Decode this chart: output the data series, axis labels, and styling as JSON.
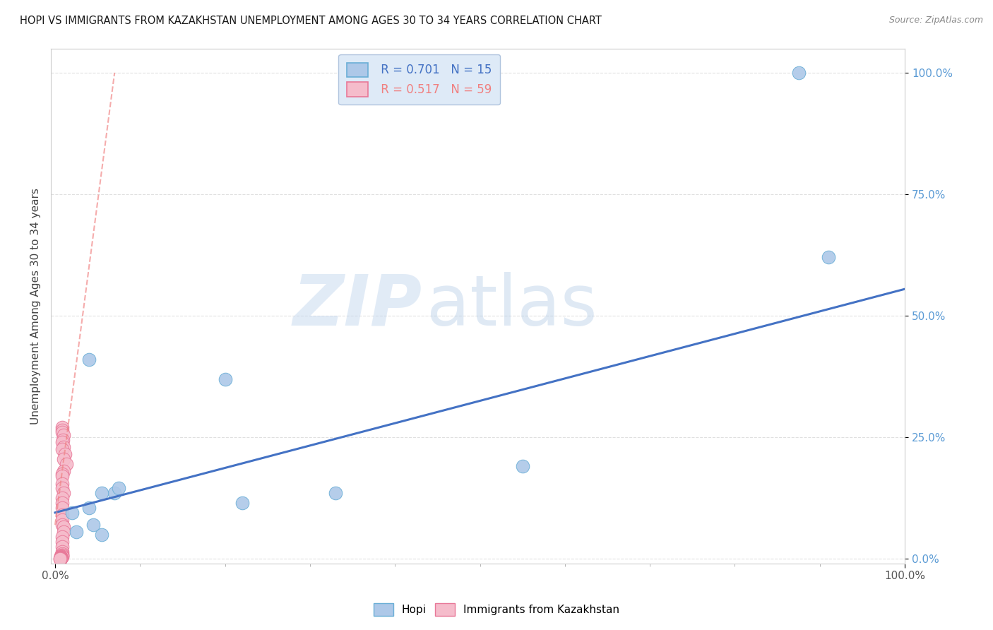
{
  "title": "HOPI VS IMMIGRANTS FROM KAZAKHSTAN UNEMPLOYMENT AMONG AGES 30 TO 34 YEARS CORRELATION CHART",
  "source": "Source: ZipAtlas.com",
  "ylabel": "Unemployment Among Ages 30 to 34 years",
  "xlim": [
    -0.005,
    1.0
  ],
  "ylim": [
    -0.01,
    1.05
  ],
  "xtick_positions": [
    0.0,
    1.0
  ],
  "xticklabels": [
    "0.0%",
    "100.0%"
  ],
  "ytick_positions": [
    0.0,
    0.25,
    0.5,
    0.75,
    1.0
  ],
  "yticklabels": [
    "0.0%",
    "25.0%",
    "50.0%",
    "75.0%",
    "100.0%"
  ],
  "hopi_color": "#adc8e8",
  "hopi_edge_color": "#6aaed6",
  "kaz_color": "#f5bccb",
  "kaz_edge_color": "#e87898",
  "hopi_line_color": "#4472c4",
  "kaz_line_color": "#f08080",
  "legend_hopi_label": " R = 0.701   N = 15",
  "legend_kaz_label": " R = 0.517   N = 59",
  "hopi_x": [
    0.04,
    0.07,
    0.04,
    0.055,
    0.22,
    0.33,
    0.55,
    0.91,
    0.875,
    0.055,
    0.02,
    0.075,
    0.045,
    0.025,
    0.2
  ],
  "hopi_y": [
    0.41,
    0.135,
    0.105,
    0.135,
    0.115,
    0.135,
    0.19,
    0.62,
    1.0,
    0.05,
    0.095,
    0.145,
    0.07,
    0.055,
    0.37
  ],
  "kaz_x": [
    0.008,
    0.008,
    0.008,
    0.01,
    0.009,
    0.008,
    0.01,
    0.008,
    0.012,
    0.01,
    0.013,
    0.01,
    0.008,
    0.008,
    0.008,
    0.008,
    0.01,
    0.008,
    0.008,
    0.008,
    0.008,
    0.008,
    0.008,
    0.01,
    0.01,
    0.008,
    0.008,
    0.008,
    0.008,
    0.008,
    0.008,
    0.008,
    0.007,
    0.007,
    0.008,
    0.008,
    0.007,
    0.007,
    0.007,
    0.007,
    0.007,
    0.007,
    0.007,
    0.007,
    0.007,
    0.007,
    0.007,
    0.007,
    0.007,
    0.007,
    0.007,
    0.007,
    0.007,
    0.007,
    0.007,
    0.007,
    0.007,
    0.006,
    0.006
  ],
  "kaz_y": [
    0.27,
    0.265,
    0.26,
    0.255,
    0.245,
    0.24,
    0.23,
    0.225,
    0.215,
    0.205,
    0.195,
    0.18,
    0.175,
    0.17,
    0.155,
    0.145,
    0.135,
    0.125,
    0.115,
    0.105,
    0.09,
    0.08,
    0.07,
    0.065,
    0.055,
    0.045,
    0.035,
    0.025,
    0.015,
    0.01,
    0.008,
    0.007,
    0.006,
    0.005,
    0.005,
    0.004,
    0.004,
    0.003,
    0.003,
    0.003,
    0.003,
    0.002,
    0.002,
    0.002,
    0.002,
    0.002,
    0.001,
    0.001,
    0.001,
    0.001,
    0.001,
    0.001,
    0.001,
    0.001,
    0.0,
    0.0,
    0.0,
    0.0,
    0.0
  ],
  "hopi_line_x0": 0.0,
  "hopi_line_y0": 0.095,
  "hopi_line_x1": 1.0,
  "hopi_line_y1": 0.555,
  "kaz_line_x0": 0.0,
  "kaz_line_y0": 0.07,
  "kaz_line_x1": 0.07,
  "kaz_line_y1": 1.0,
  "watermark_zip": "ZIP",
  "watermark_atlas": "atlas",
  "marker_size": 180,
  "grid_color": "#e0e0e0",
  "background_color": "#ffffff",
  "legend_facecolor": "#deeaf7",
  "legend_edgecolor": "#b0c4de",
  "tick_color": "#5b9bd5",
  "spine_color": "#cccccc"
}
